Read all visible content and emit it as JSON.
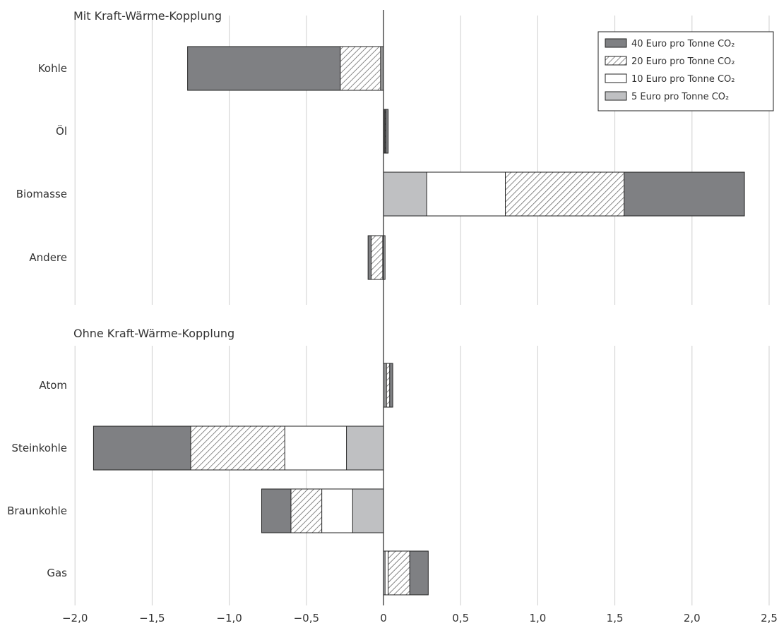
{
  "colors": {
    "c40": "#7f8083",
    "c10": "#ffffff",
    "c5": "#bfc0c2",
    "hatch": "#555555",
    "stroke": "#222222",
    "grid": "#cfcfcf"
  },
  "chart_data": {
    "type": "bar",
    "orientation": "horizontal",
    "stacked": true,
    "xlim": [
      -2.0,
      2.5
    ],
    "x_ticks": [
      -2.0,
      -1.5,
      -1.0,
      -0.5,
      0,
      0.5,
      1.0,
      1.5,
      2.0,
      2.5
    ],
    "x_tick_labels": [
      "−2,0",
      "−1,5",
      "−1,0",
      "−0,5",
      "0",
      "0,5",
      "1,0",
      "1,5",
      "2,0",
      "2,5"
    ],
    "grid": "vertical",
    "legend_position": "top-right",
    "legend": [
      {
        "key": "p40",
        "label": "40 Euro pro Tonne CO₂",
        "fill": "solid-dark"
      },
      {
        "key": "p20",
        "label": "20 Euro pro Tonne CO₂",
        "fill": "hatched"
      },
      {
        "key": "p10",
        "label": "10 Euro pro Tonne CO₂",
        "fill": "white"
      },
      {
        "key": "p5",
        "label": "5 Euro pro Tonne CO₂",
        "fill": "solid-light"
      }
    ],
    "groups": [
      {
        "label": "Mit Kraft-Wärme-Kopplung",
        "categories": [
          {
            "name": "Kohle",
            "p5": -0.01,
            "p10": -0.02,
            "p20": -0.28,
            "p40": -1.27
          },
          {
            "name": "Öl",
            "p5": 0.005,
            "p10": 0.01,
            "p20": 0.015,
            "p40": 0.03
          },
          {
            "name": "Biomasse",
            "p5": 0.28,
            "p10": 0.79,
            "p20": 1.56,
            "p40": 2.34
          },
          {
            "name": "Andere",
            "p5": 0.01,
            "p10": -0.005,
            "p20": -0.08,
            "p40": -0.1
          }
        ]
      },
      {
        "label": "Ohne Kraft-Wärme-Kopplung",
        "categories": [
          {
            "name": "Atom",
            "p5": 0.01,
            "p10": 0.02,
            "p20": 0.04,
            "p40": 0.06
          },
          {
            "name": "Steinkohle",
            "p5": -0.24,
            "p10": -0.64,
            "p20": -1.25,
            "p40": -1.88
          },
          {
            "name": "Braunkohle",
            "p5": -0.2,
            "p10": -0.4,
            "p20": -0.6,
            "p40": -0.79
          },
          {
            "name": "Gas",
            "p5": 0.01,
            "p10": 0.03,
            "p20": 0.17,
            "p40": 0.29
          }
        ]
      }
    ]
  }
}
